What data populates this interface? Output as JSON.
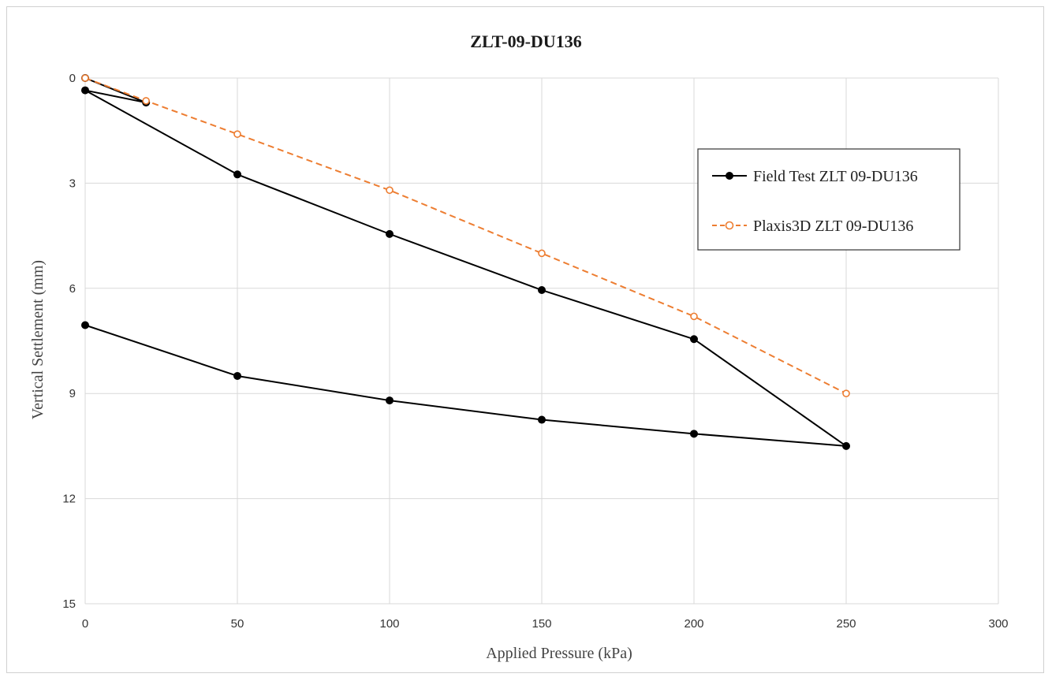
{
  "chart_data": {
    "type": "line",
    "title": "ZLT-09-DU136",
    "xlabel": "Applied Pressure (kPa)",
    "ylabel": "Vertical Settlement (mm)",
    "xlim": [
      0,
      300
    ],
    "ylim": [
      0,
      15
    ],
    "y_inverted": true,
    "x_ticks": [
      0,
      50,
      100,
      150,
      200,
      250,
      300
    ],
    "y_ticks": [
      0,
      3,
      6,
      9,
      12,
      15
    ],
    "grid": true,
    "legend_position": "right",
    "series": [
      {
        "name": "Field Test ZLT 09-DU136",
        "color": "#000000",
        "line_style": "solid",
        "marker": "filled-circle",
        "x": [
          0,
          20,
          0,
          50,
          100,
          150,
          200,
          250,
          200,
          150,
          100,
          50,
          0
        ],
        "y": [
          0.0,
          0.7,
          0.35,
          2.75,
          4.45,
          6.05,
          7.45,
          10.5,
          10.15,
          9.75,
          9.2,
          8.5,
          7.05
        ]
      },
      {
        "name": "Plaxis3D ZLT 09-DU136",
        "color": "#ed7d31",
        "line_style": "dashed",
        "marker": "open-circle",
        "x": [
          0,
          20,
          50,
          100,
          150,
          200,
          250
        ],
        "y": [
          0.0,
          0.65,
          1.6,
          3.2,
          5.0,
          6.8,
          9.0
        ]
      }
    ]
  }
}
